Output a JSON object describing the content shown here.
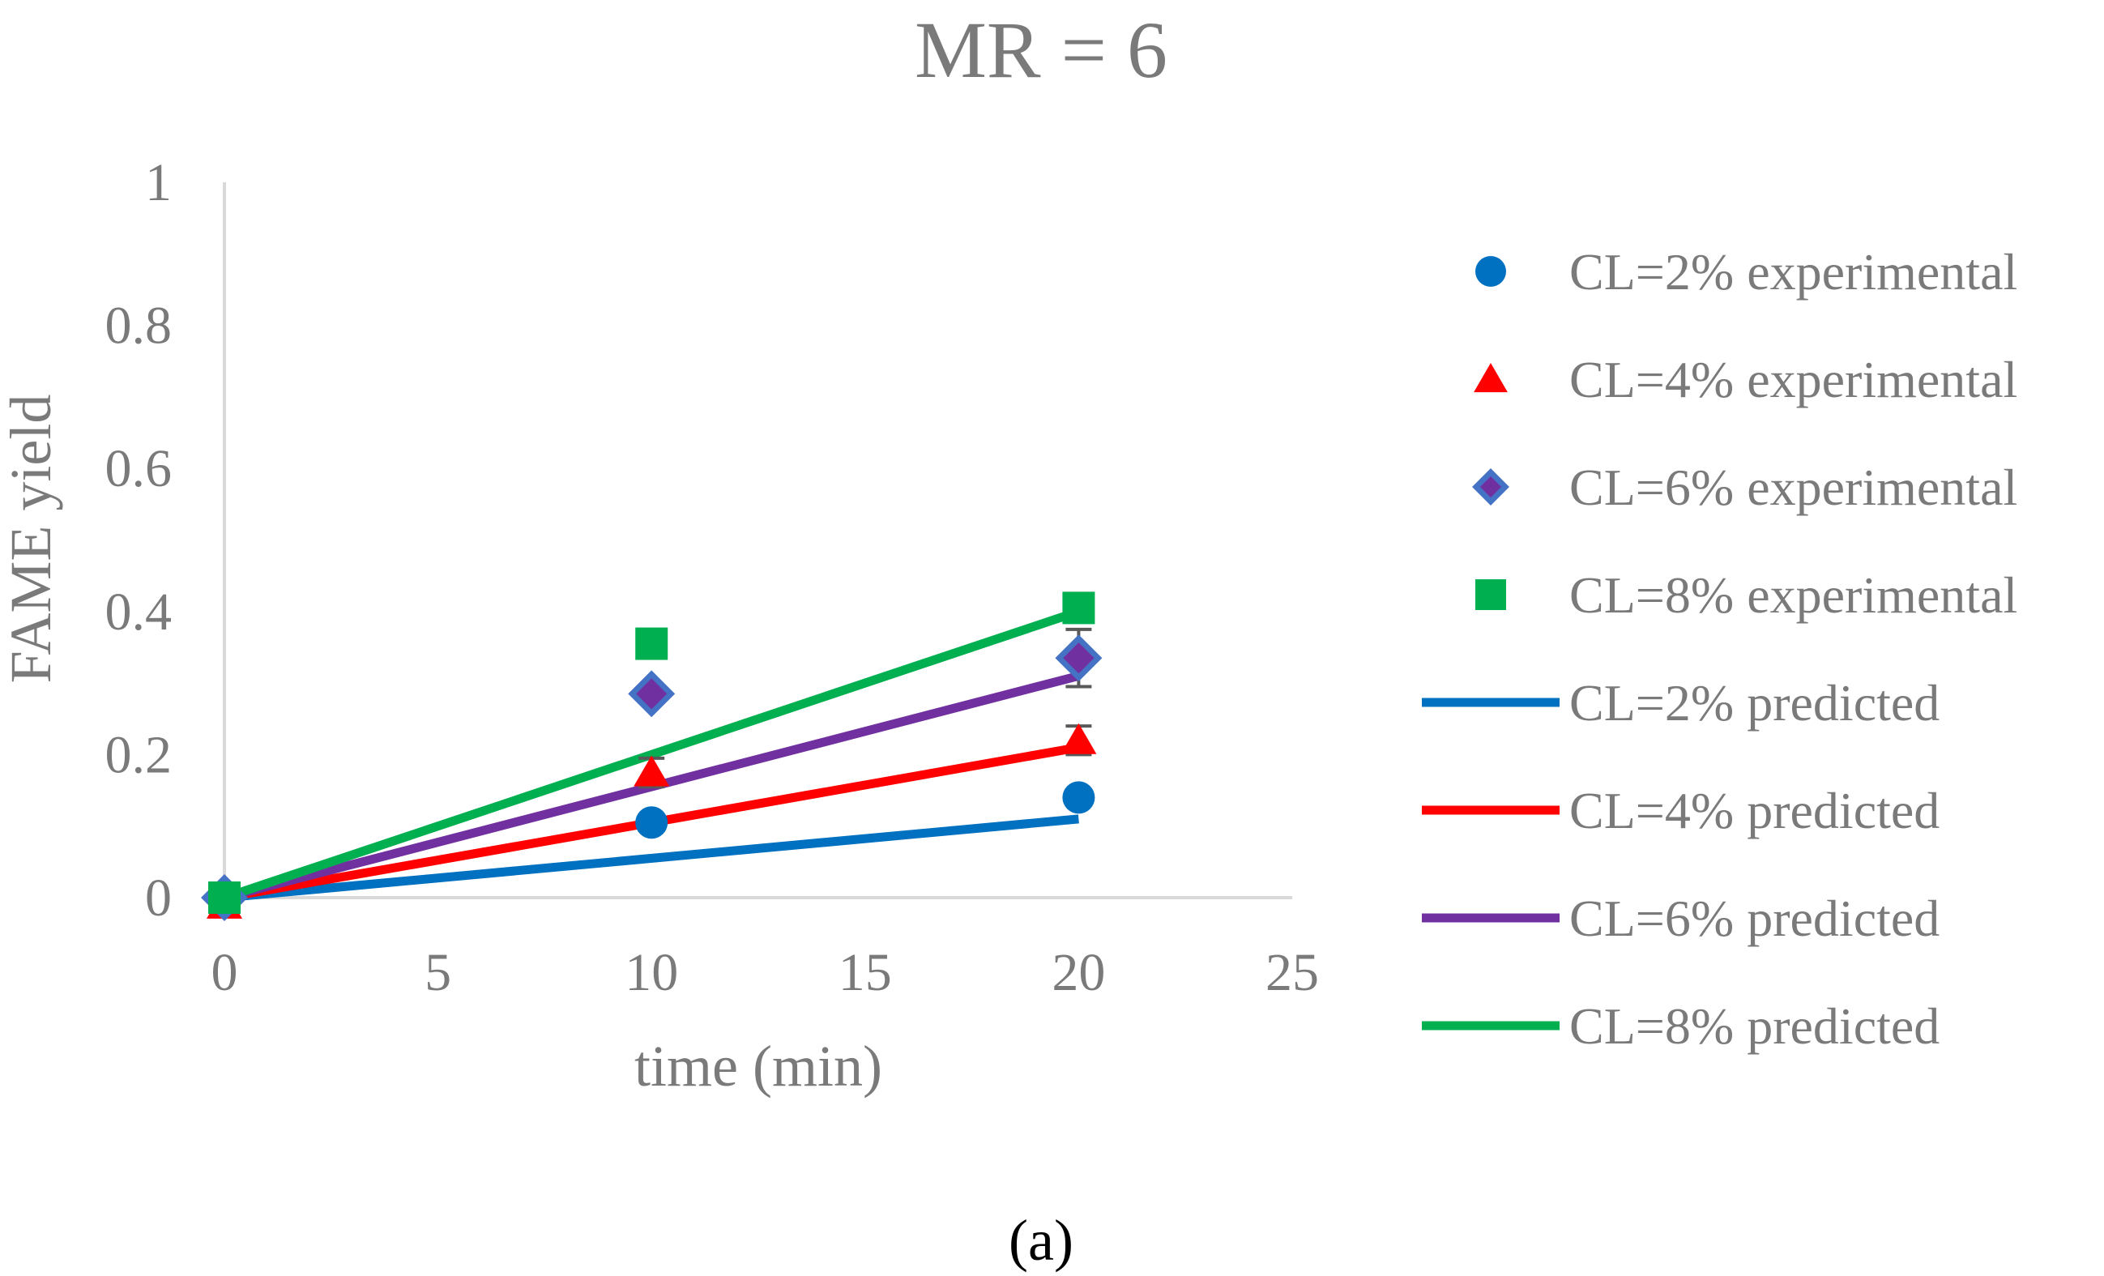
{
  "chart_data": {
    "type": "scatter",
    "title": "MR = 6",
    "xlabel": "time (min)",
    "ylabel": "FAME yield",
    "xlim": [
      0,
      25
    ],
    "ylim": [
      0,
      1
    ],
    "xticks": [
      "0",
      "5",
      "10",
      "15",
      "20",
      "25"
    ],
    "yticks": [
      "0",
      "0.2",
      "0.4",
      "0.6",
      "0.8",
      "1"
    ],
    "grid": false,
    "legend_position": "right",
    "panel_label": "(a)",
    "experimental": [
      {
        "name": "CL=2% experimental",
        "marker": "circle",
        "color": "#0070c0",
        "x": [
          0,
          10,
          20
        ],
        "y": [
          0.0,
          0.105,
          0.14
        ],
        "err": [
          0,
          0.01,
          0.01
        ]
      },
      {
        "name": "CL=4% experimental",
        "marker": "triangle",
        "color": "#ff0000",
        "x": [
          0,
          10,
          20
        ],
        "y": [
          -0.01,
          0.175,
          0.22
        ],
        "err": [
          0,
          0.02,
          0.02
        ]
      },
      {
        "name": "CL=6% experimental",
        "marker": "diamond",
        "color": "#7030a0",
        "edge": "#4472c4",
        "x": [
          0,
          10,
          20
        ],
        "y": [
          0.0,
          0.285,
          0.335
        ],
        "err": [
          0,
          0.01,
          0.04
        ]
      },
      {
        "name": "CL=8% experimental",
        "marker": "square",
        "color": "#00b050",
        "x": [
          0,
          10,
          20
        ],
        "y": [
          0.0,
          0.355,
          0.405
        ],
        "err": [
          0,
          0.01,
          0.01
        ]
      }
    ],
    "predicted": [
      {
        "name": "CL=2% predicted",
        "color": "#0070c0",
        "x": [
          0,
          20
        ],
        "y": [
          0.0,
          0.11
        ]
      },
      {
        "name": "CL=4% predicted",
        "color": "#ff0000",
        "x": [
          0,
          20
        ],
        "y": [
          0.0,
          0.21
        ]
      },
      {
        "name": "CL=6% predicted",
        "color": "#7030a0",
        "x": [
          0,
          20
        ],
        "y": [
          0.0,
          0.31
        ]
      },
      {
        "name": "CL=8% predicted",
        "color": "#00b050",
        "x": [
          0,
          20
        ],
        "y": [
          0.0,
          0.4
        ]
      }
    ]
  }
}
